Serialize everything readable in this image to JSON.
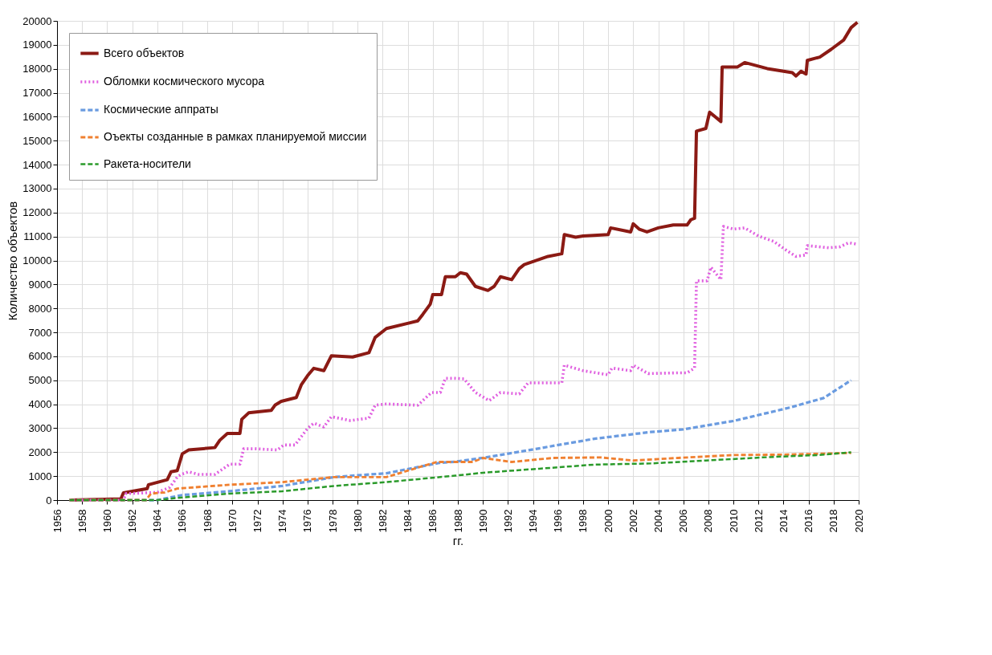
{
  "chart_data": {
    "type": "line",
    "xlabel": "гг.",
    "ylabel": "Количество объектов",
    "xlim": [
      1956,
      2020
    ],
    "xticks": [
      1956,
      1958,
      1960,
      1962,
      1964,
      1966,
      1968,
      1970,
      1972,
      1974,
      1976,
      1978,
      1980,
      1982,
      1984,
      1986,
      1988,
      1990,
      1992,
      1994,
      1996,
      1998,
      2000,
      2002,
      2004,
      2006,
      2008,
      2010,
      2012,
      2014,
      2016,
      2018,
      2020
    ],
    "ylim": [
      0,
      20000
    ],
    "yticks": [
      0,
      1000,
      2000,
      3000,
      4000,
      5000,
      6000,
      7000,
      8000,
      9000,
      10000,
      11000,
      12000,
      13000,
      14000,
      15000,
      16000,
      17000,
      18000,
      19000,
      20000
    ],
    "grid": true,
    "legend": "top left",
    "series": [
      {
        "name": "Всего объектов",
        "color": "#8b1a14",
        "line_style": "solid",
        "x": [
          1957,
          1961.1,
          1961.3,
          1963.2,
          1963.3,
          1964.8,
          1965.1,
          1965.6,
          1966,
          1966.5,
          1968.6,
          1969,
          1969.6,
          1970.6,
          1970.75,
          1971.3,
          1973.1,
          1973.4,
          1973.9,
          1975.1,
          1975.5,
          1976,
          1976.5,
          1977.3,
          1977.9,
          1979.6,
          1980.9,
          1981.4,
          1982.3,
          1984.8,
          1985.2,
          1985.8,
          1986,
          1986.7,
          1987,
          1987.8,
          1988.2,
          1988.7,
          1989.4,
          1990.4,
          1990.9,
          1991.4,
          1992.3,
          1992.9,
          1993.3,
          1995.2,
          1996.3,
          1996.5,
          1997.4,
          1998,
          2000,
          2000.2,
          2001.8,
          2002,
          2002.5,
          2003.1,
          2004,
          2005.2,
          2006.3,
          2006.6,
          2006.9,
          2007.05,
          2007.8,
          2008.1,
          2009,
          2009.1,
          2010.3,
          2010.9,
          2012.7,
          2014.7,
          2015,
          2015.4,
          2015.8,
          2015.9,
          2016.9,
          2017.8,
          2018.8,
          2019.4,
          2019.9
        ],
        "values": [
          0,
          50,
          300,
          480,
          640,
          850,
          1180,
          1230,
          1930,
          2090,
          2190,
          2500,
          2780,
          2780,
          3370,
          3640,
          3740,
          3960,
          4120,
          4280,
          4810,
          5190,
          5500,
          5400,
          6020,
          5970,
          6150,
          6790,
          7160,
          7480,
          7750,
          8180,
          8580,
          8580,
          9320,
          9320,
          9490,
          9430,
          8920,
          8750,
          8920,
          9320,
          9200,
          9660,
          9830,
          10170,
          10280,
          11080,
          10970,
          11020,
          11080,
          11360,
          11190,
          11530,
          11300,
          11190,
          11360,
          11480,
          11480,
          11700,
          11760,
          15400,
          15510,
          16190,
          15800,
          18070,
          18070,
          18260,
          18010,
          17840,
          17700,
          17900,
          17780,
          18350,
          18490,
          18810,
          19200,
          19720,
          19940
        ]
      },
      {
        "name": "Обломки космического мусора",
        "color": "#e060e0",
        "line_style": "dotted",
        "x": [
          1957,
          1961.3,
          1961.5,
          1964,
          1965,
          1965.6,
          1965.9,
          1966.5,
          1967.3,
          1968.6,
          1969.8,
          1970.6,
          1970.9,
          1971.9,
          1973.6,
          1974.1,
          1975,
          1976,
          1976.5,
          1977.3,
          1977.9,
          1979.4,
          1980.9,
          1981.4,
          1982.3,
          1984.8,
          1985.9,
          1986.6,
          1987,
          1987.8,
          1988.5,
          1989.4,
          1990.5,
          1991.4,
          1992.9,
          1993.6,
          1996.3,
          1996.5,
          1998,
          2000,
          2000.3,
          2001.8,
          2002,
          2003.2,
          2005.6,
          2006.3,
          2006.9,
          2007.05,
          2007.9,
          2008.2,
          2009,
          2009.2,
          2010,
          2010.9,
          2012,
          2013.2,
          2014.3,
          2015,
          2015.8,
          2015.9,
          2017.6,
          2018.5,
          2019.2,
          2019.9
        ],
        "values": [
          0,
          0,
          270,
          320,
          530,
          960,
          1070,
          1180,
          1070,
          1070,
          1500,
          1500,
          2140,
          2140,
          2090,
          2300,
          2300,
          2990,
          3210,
          3050,
          3480,
          3320,
          3420,
          3960,
          4010,
          3960,
          4490,
          4490,
          5080,
          5080,
          5060,
          4490,
          4150,
          4490,
          4430,
          4890,
          4890,
          5630,
          5400,
          5230,
          5510,
          5400,
          5630,
          5280,
          5310,
          5310,
          5510,
          9150,
          9150,
          9720,
          9200,
          11420,
          11310,
          11360,
          11020,
          10800,
          10400,
          10170,
          10230,
          10620,
          10530,
          10570,
          10740,
          10680
        ]
      },
      {
        "name": "Космические аппраты",
        "color": "#6a9be0",
        "line_style": "dashed",
        "x": [
          1957,
          1964,
          1966,
          1969.8,
          1974,
          1978.1,
          1982.3,
          1986.5,
          1987.8,
          1990,
          1994.5,
          1998.9,
          2003.4,
          2006,
          2010,
          2014.5,
          2017.2,
          2019.4
        ],
        "values": [
          0,
          0,
          210,
          370,
          590,
          960,
          1120,
          1550,
          1600,
          1760,
          2160,
          2560,
          2840,
          2950,
          3300,
          3860,
          4260,
          5000
        ]
      },
      {
        "name": "Оъекты созданные в рамках планируемой миссии",
        "color": "#f08030",
        "line_style": "dashed",
        "x": [
          1957,
          1963.1,
          1963.5,
          1964.6,
          1965.6,
          1969.8,
          1974,
          1978.1,
          1982.3,
          1986.3,
          1987.8,
          1989.2,
          1990,
          1992.3,
          1995.6,
          1999.4,
          2002,
          2005.6,
          2010,
          2014.5,
          2019.4
        ],
        "values": [
          0,
          0,
          270,
          320,
          480,
          640,
          750,
          960,
          960,
          1590,
          1590,
          1590,
          1760,
          1590,
          1760,
          1780,
          1650,
          1760,
          1880,
          1900,
          1970
        ]
      },
      {
        "name": "Ракета-носители",
        "color": "#2a9a2a",
        "line_style": "dashed",
        "x": [
          1957,
          1964,
          1966,
          1969.8,
          1974,
          1978.1,
          1982.3,
          1987.8,
          1990,
          1994.5,
          1998.9,
          2003.4,
          2007.8,
          2012.3,
          2016.7,
          2019.4
        ],
        "values": [
          0,
          0,
          110,
          270,
          370,
          590,
          750,
          1020,
          1140,
          1310,
          1480,
          1530,
          1650,
          1780,
          1880,
          1990
        ]
      }
    ]
  }
}
